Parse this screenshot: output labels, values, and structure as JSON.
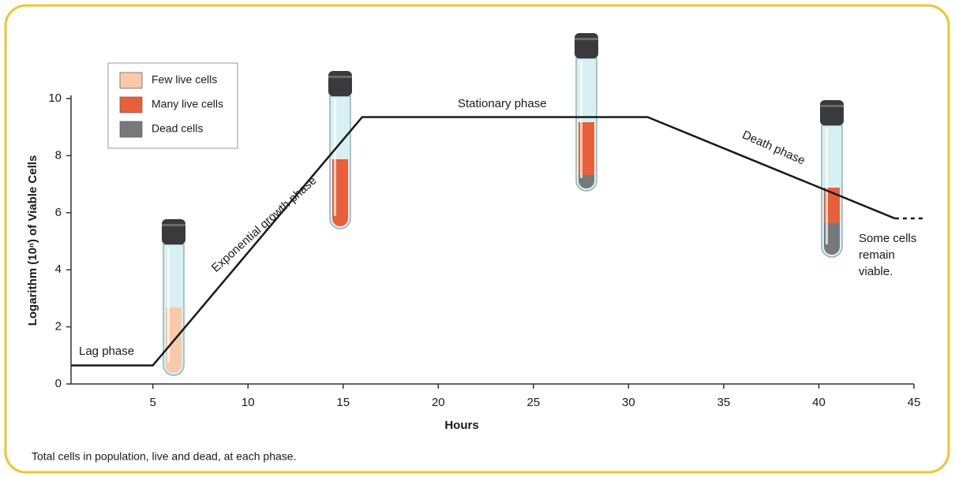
{
  "chart_data": {
    "type": "line",
    "x_label": "Hours",
    "y_label": "Logarithm (10ⁿ) of Viable Cells",
    "footnote": "Total cells in population, live and dead, at each phase.",
    "x": [
      0.7,
      5,
      16,
      31,
      44
    ],
    "values": [
      0.65,
      0.65,
      9.35,
      9.35,
      5.8
    ],
    "extension_x": [
      44,
      45.5
    ],
    "extension_values": [
      5.8,
      5.8
    ],
    "color": "#1a1a1a",
    "xlim": [
      0.7,
      45
    ],
    "xticks": [
      5,
      10,
      15,
      20,
      25,
      30,
      35,
      40,
      45
    ],
    "ylim": [
      0,
      10
    ],
    "yticks": [
      0,
      2,
      4,
      6,
      8,
      10
    ],
    "annotations": {
      "lag": "Lag phase",
      "exponential": "Exponential growth phase",
      "stationary": "Stationary phase",
      "death": "Death phase",
      "viable": [
        "Some cells",
        "remain",
        "viable."
      ]
    },
    "legend": [
      {
        "name": "Few live cells",
        "color": "#f9c9a9"
      },
      {
        "name": "Many live cells",
        "color": "#e8603a"
      },
      {
        "name": "Dead cells",
        "color": "#77787a"
      }
    ]
  }
}
